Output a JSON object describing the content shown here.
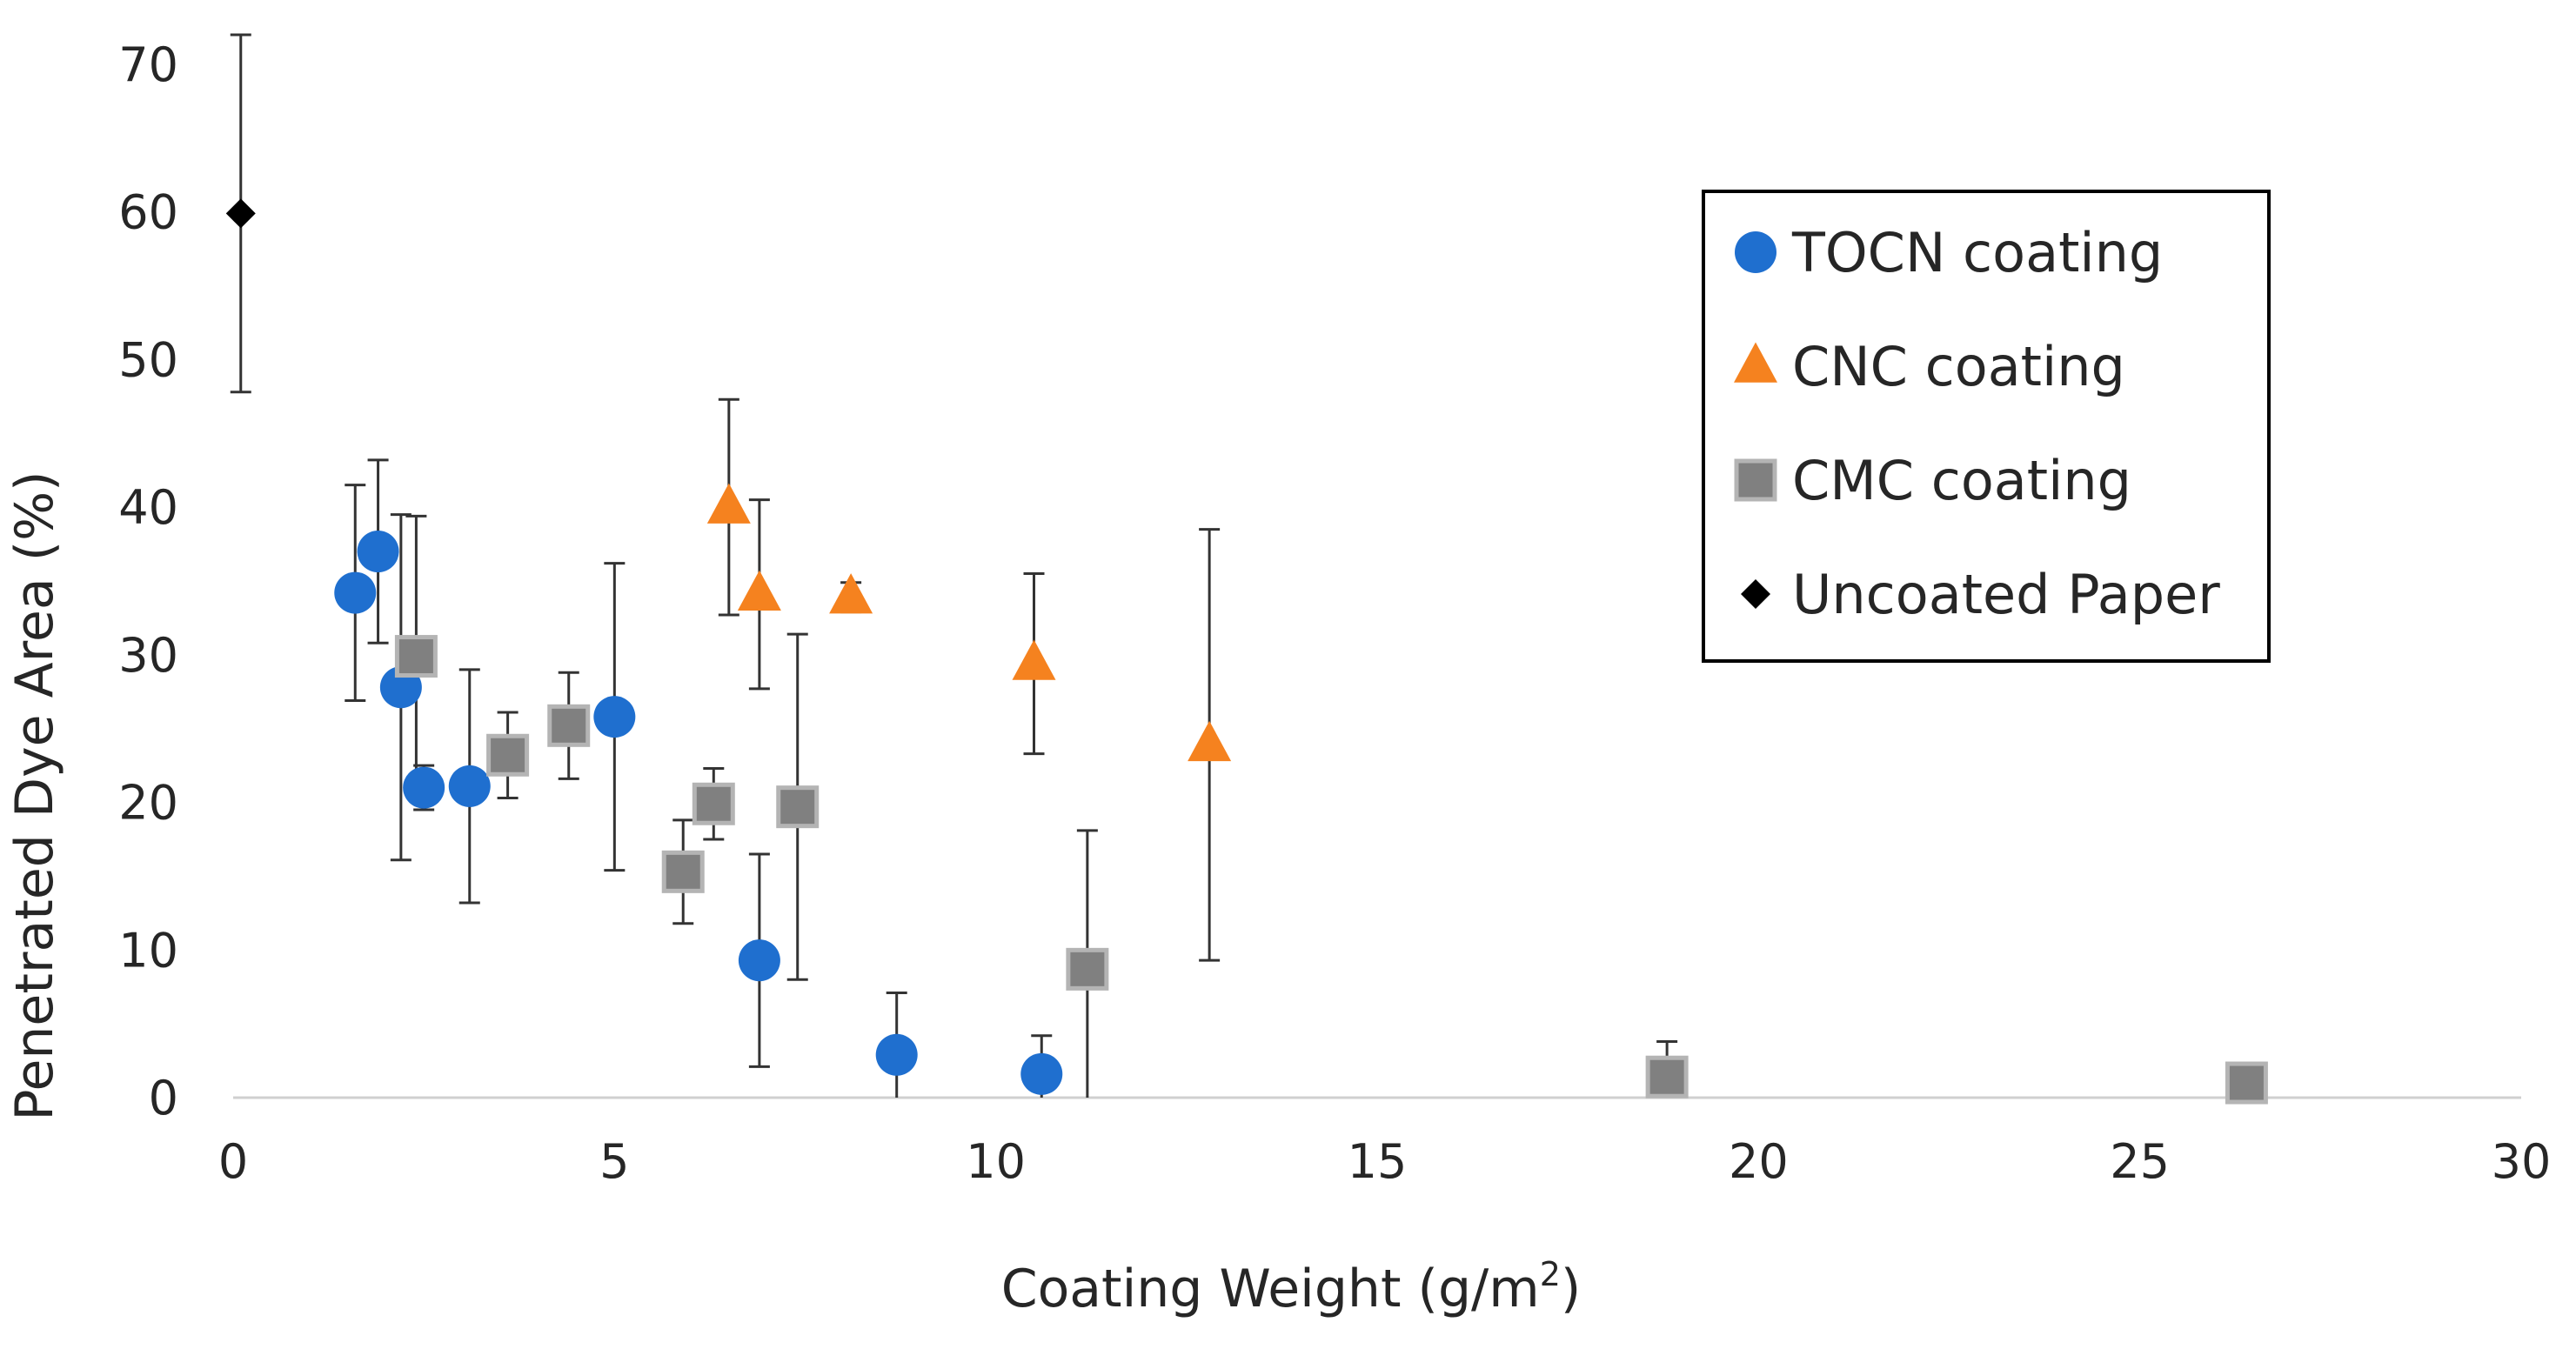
{
  "chart_data": {
    "type": "scatter",
    "xlabel": "Coating Weight (g/m",
    "xlabel_sup": "2",
    "xlabel_end": ")",
    "ylabel": "Penetrated Dye Area (%)",
    "xlim": [
      0,
      30
    ],
    "ylim": [
      0,
      70
    ],
    "xticks": [
      "0",
      "5",
      "10",
      "15",
      "20",
      "25",
      "30"
    ],
    "yticks": [
      "0",
      "10",
      "20",
      "30",
      "40",
      "50",
      "60",
      "70"
    ],
    "grid": false,
    "legend_position": "top-right",
    "series": [
      {
        "name": "TOCN coating",
        "marker": "circle",
        "color": "#1f6fcf",
        "points": [
          {
            "x": 1.6,
            "y": 34.2,
            "err": 7.3
          },
          {
            "x": 1.9,
            "y": 37.0,
            "err": 6.2
          },
          {
            "x": 2.2,
            "y": 27.8,
            "err": 11.7
          },
          {
            "x": 2.5,
            "y": 21.0,
            "err": 1.5
          },
          {
            "x": 3.1,
            "y": 21.1,
            "err": 7.9
          },
          {
            "x": 5.0,
            "y": 25.8,
            "err": 10.4
          },
          {
            "x": 6.9,
            "y": 9.3,
            "err": 7.2
          },
          {
            "x": 8.7,
            "y": 2.9,
            "err": 4.2
          },
          {
            "x": 10.6,
            "y": 1.6,
            "err": 2.6
          }
        ]
      },
      {
        "name": "CNC coating",
        "marker": "triangle",
        "color": "#f5821f",
        "points": [
          {
            "x": 6.5,
            "y": 40.0,
            "err": 7.3
          },
          {
            "x": 6.9,
            "y": 34.1,
            "err": 6.4
          },
          {
            "x": 8.1,
            "y": 33.9,
            "err": 1.0
          },
          {
            "x": 10.5,
            "y": 29.4,
            "err": 6.1
          },
          {
            "x": 12.8,
            "y": 23.9,
            "err": 14.6
          }
        ]
      },
      {
        "name": "CMC coating",
        "marker": "square",
        "color": "#808080",
        "points": [
          {
            "x": 2.4,
            "y": 29.9,
            "err": 9.5
          },
          {
            "x": 3.6,
            "y": 23.2,
            "err": 2.9
          },
          {
            "x": 4.4,
            "y": 25.2,
            "err": 3.6
          },
          {
            "x": 5.9,
            "y": 15.3,
            "err": 3.5
          },
          {
            "x": 6.3,
            "y": 19.9,
            "err": 2.4
          },
          {
            "x": 7.4,
            "y": 19.7,
            "err": 11.7
          },
          {
            "x": 11.2,
            "y": 8.7,
            "err": 9.4
          },
          {
            "x": 18.8,
            "y": 1.4,
            "err": 2.4
          },
          {
            "x": 26.4,
            "y": 1.0,
            "err": 0
          }
        ]
      },
      {
        "name": "Uncoated Paper",
        "marker": "diamond",
        "color": "#000000",
        "points": [
          {
            "x": 0.1,
            "y": 59.9,
            "err": 12.1
          }
        ]
      }
    ]
  }
}
